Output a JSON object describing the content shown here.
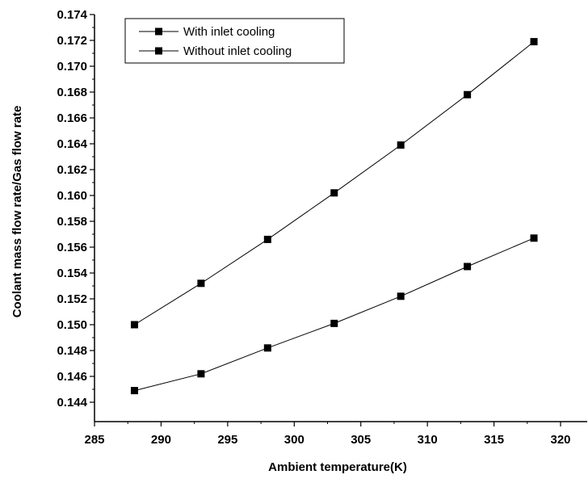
{
  "chart_data": {
    "type": "line",
    "xlabel": "Ambient temperature(K)",
    "ylabel": "Coolant mass flow rate/Gas flow rate",
    "xlim": [
      285,
      322
    ],
    "ylim": [
      0.1425,
      0.174
    ],
    "x_ticks": [
      "285",
      "290",
      "295",
      "300",
      "305",
      "310",
      "315",
      "320"
    ],
    "y_ticks": [
      "0.144",
      "0.146",
      "0.148",
      "0.150",
      "0.152",
      "0.154",
      "0.156",
      "0.158",
      "0.160",
      "0.162",
      "0.164",
      "0.166",
      "0.168",
      "0.170",
      "0.172",
      "0.174"
    ],
    "x": [
      288,
      293,
      298,
      303,
      308,
      313,
      318
    ],
    "series": [
      {
        "name": "With  inlet cooling",
        "values": [
          0.1449,
          0.1462,
          0.1482,
          0.1501,
          0.1522,
          0.1545,
          0.1567
        ]
      },
      {
        "name": "Without inlet cooling",
        "values": [
          0.15,
          0.1532,
          0.1566,
          0.1602,
          0.1639,
          0.1678,
          0.1719
        ]
      }
    ],
    "legend_position": "top-left",
    "grid": false
  }
}
